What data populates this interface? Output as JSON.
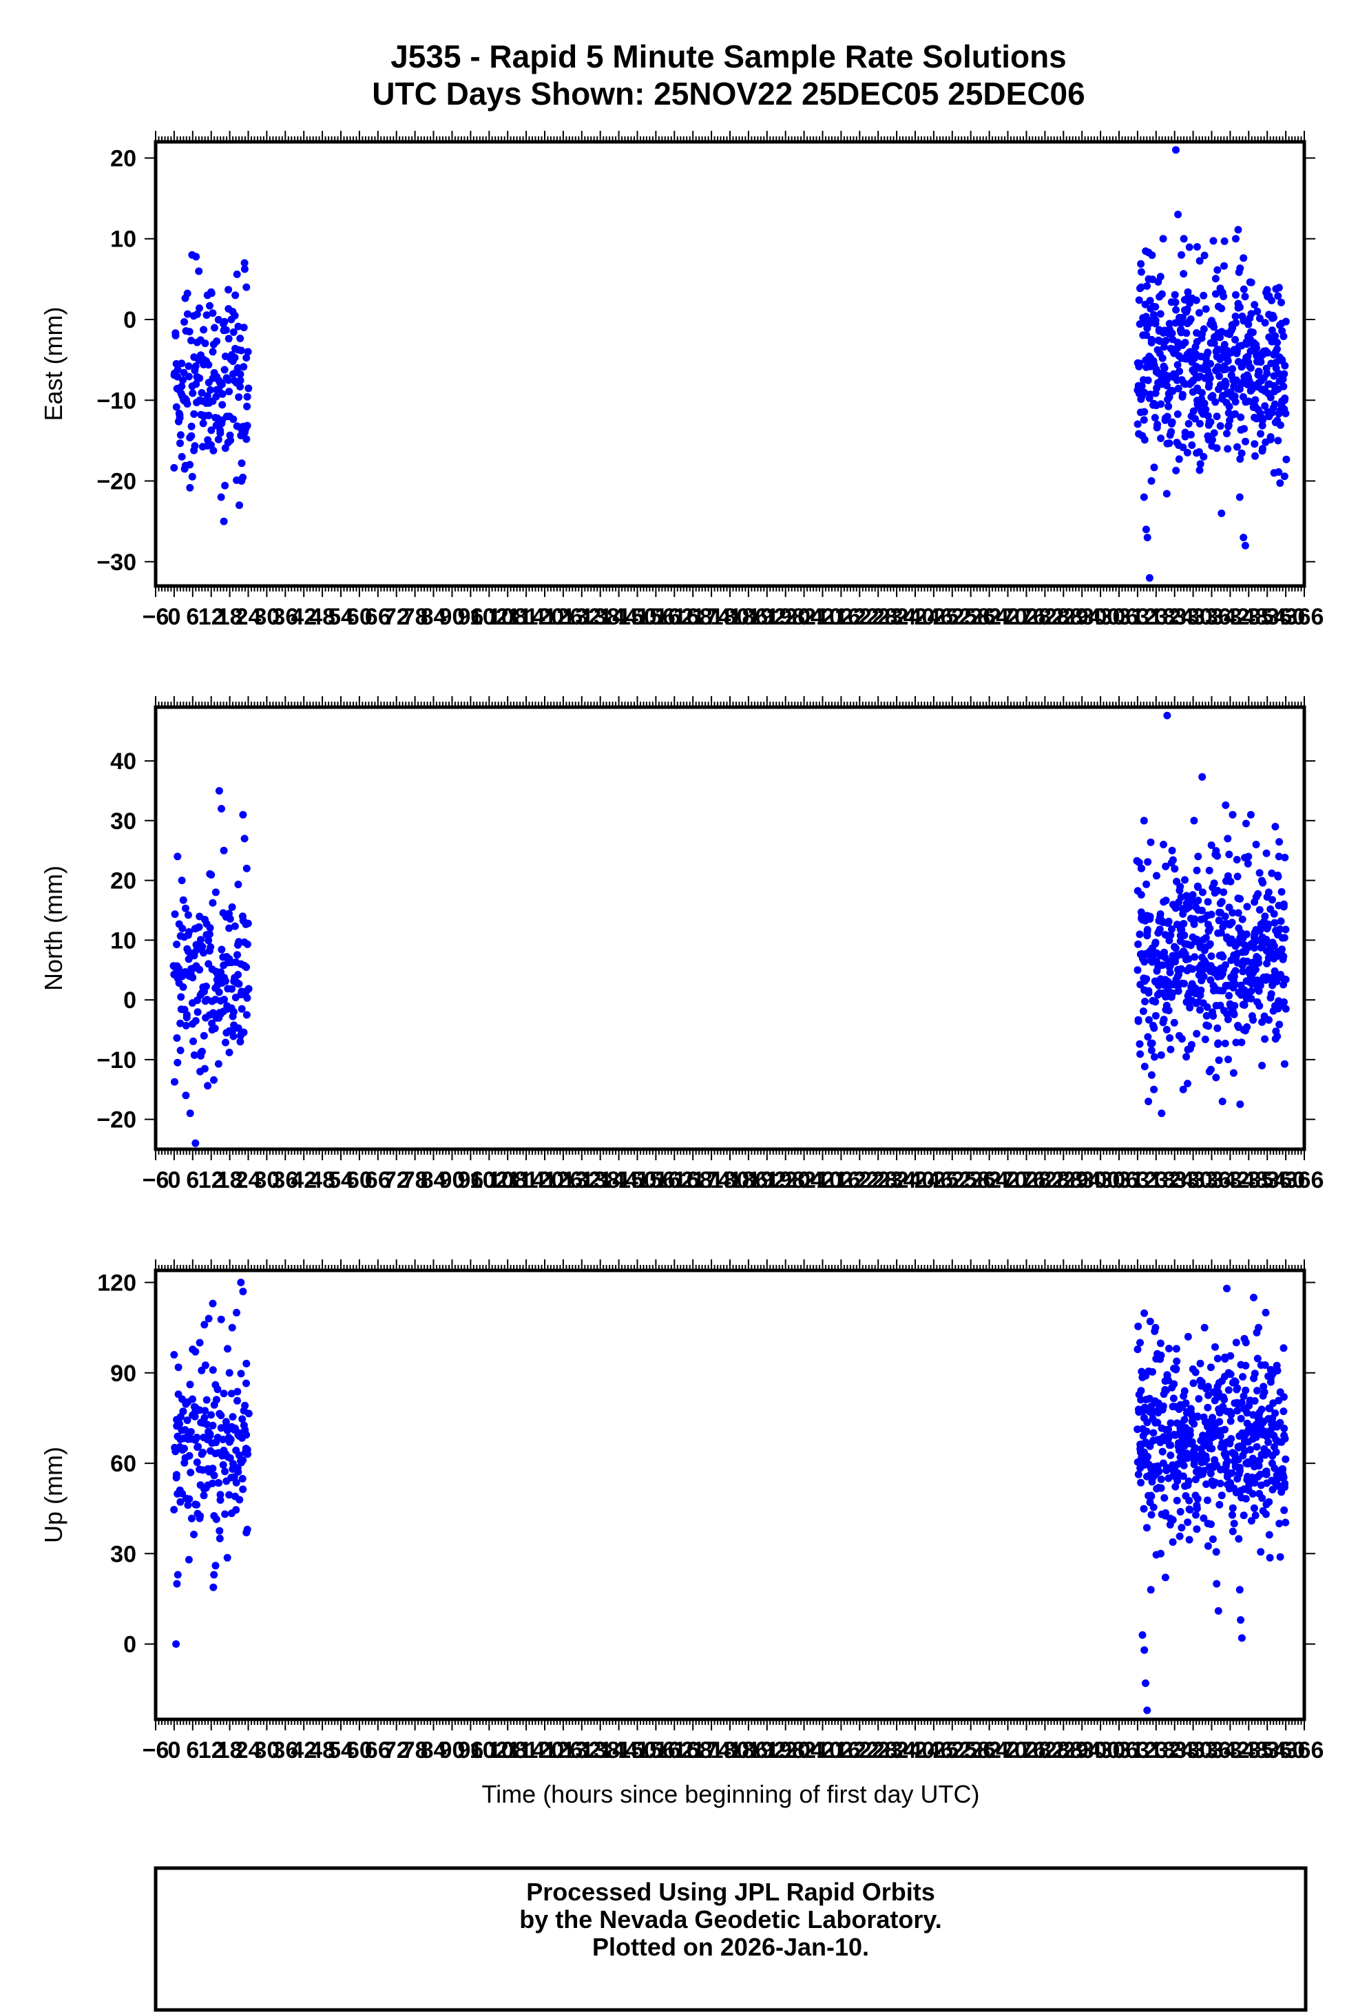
{
  "title": {
    "line1": "J535 - Rapid 5 Minute Sample Rate Solutions",
    "line2": "UTC Days Shown:  25NOV22 25DEC05 25DEC06"
  },
  "footer": {
    "line1": "Processed Using JPL Rapid Orbits",
    "line2": "by the Nevada Geodetic Laboratory.",
    "line3": "Plotted on 2026-Jan-10."
  },
  "colors": {
    "points": "#0000ff",
    "axes": "#000000",
    "background": "#ffffff"
  },
  "chart_data": [
    {
      "type": "scatter",
      "panel": "east",
      "ylabel": "East (mm)",
      "xlabel": "",
      "xlim": [
        -6,
        366
      ],
      "ylim": [
        -33,
        22
      ],
      "yticks": [
        -30,
        -20,
        -10,
        0,
        10,
        20
      ],
      "xtick_labels": [
        "−6",
        "0",
        "6",
        "12",
        "18",
        "24",
        "30",
        "36",
        "42",
        "48",
        "54",
        "60",
        "66",
        "72",
        "78",
        "84",
        "90",
        "96",
        "102",
        "108",
        "114",
        "120",
        "126",
        "132",
        "138",
        "144",
        "150",
        "156",
        "162",
        "168",
        "174",
        "180",
        "186",
        "192",
        "198",
        "204",
        "210",
        "216",
        "222",
        "228",
        "234",
        "240",
        "246",
        "252",
        "258",
        "264",
        "270",
        "276",
        "282",
        "288",
        "294",
        "300",
        "306",
        "312",
        "318",
        "324",
        "330",
        "336",
        "342",
        "348",
        "354",
        "360",
        "366"
      ],
      "series": [
        {
          "segment": "25NOV22",
          "x_range": [
            0,
            24
          ],
          "count": 180,
          "y_mean": -8,
          "y_sd": 6,
          "y_min": -25,
          "y_max": 8,
          "points": [
            [
              2.5,
              -17
            ],
            [
              3.4,
              -18.5
            ],
            [
              5.8,
              8
            ],
            [
              7.1,
              -8
            ],
            [
              8.3,
              -10
            ],
            [
              9.6,
              -12
            ],
            [
              10.8,
              3
            ],
            [
              12.5,
              -4
            ],
            [
              15.2,
              -22
            ],
            [
              16.1,
              -25
            ],
            [
              17.9,
              -12
            ],
            [
              19.8,
              3
            ],
            [
              20.6,
              -6
            ],
            [
              21.1,
              -23
            ],
            [
              21.8,
              -20
            ],
            [
              22.8,
              7
            ],
            [
              23.4,
              4
            ],
            [
              23.9,
              -4
            ]
          ]
        },
        {
          "segment": "25DEC05-25DEC06",
          "x_range": [
            312,
            360
          ],
          "count": 540,
          "y_mean": -6,
          "y_sd": 6,
          "y_min": -32,
          "y_max": 21,
          "points": [
            [
              313.2,
              4
            ],
            [
              314.1,
              -22
            ],
            [
              314.8,
              -26
            ],
            [
              315.2,
              -27
            ],
            [
              315.9,
              -32
            ],
            [
              316.5,
              -20
            ],
            [
              318.4,
              -13
            ],
            [
              320.3,
              10
            ],
            [
              322.6,
              -9
            ],
            [
              324.4,
              21
            ],
            [
              325.1,
              13
            ],
            [
              326.2,
              8
            ],
            [
              327.4,
              -8
            ],
            [
              329.1,
              -4
            ],
            [
              331.3,
              9
            ],
            [
              333.4,
              -17
            ],
            [
              335.2,
              -8
            ],
            [
              337.7,
              -12
            ],
            [
              339.2,
              -24
            ],
            [
              341.5,
              -4
            ],
            [
              343.8,
              10
            ],
            [
              345.1,
              -22
            ],
            [
              346.3,
              -27
            ],
            [
              346.9,
              -28
            ],
            [
              348.7,
              -6
            ],
            [
              350.8,
              1
            ],
            [
              352.5,
              -16
            ],
            [
              354.6,
              -12
            ],
            [
              356.2,
              -19
            ],
            [
              357.5,
              -15
            ],
            [
              358.8,
              -5
            ],
            [
              359.6,
              -10
            ]
          ]
        }
      ]
    },
    {
      "type": "scatter",
      "panel": "north",
      "ylabel": "North (mm)",
      "xlabel": "",
      "xlim": [
        -6,
        366
      ],
      "ylim": [
        -25,
        49
      ],
      "yticks": [
        -20,
        -10,
        0,
        10,
        20,
        30,
        40
      ],
      "xtick_labels": [
        "−6",
        "0",
        "6",
        "12",
        "18",
        "24",
        "30",
        "36",
        "42",
        "48",
        "54",
        "60",
        "66",
        "72",
        "78",
        "84",
        "90",
        "96",
        "102",
        "108",
        "114",
        "120",
        "126",
        "132",
        "138",
        "144",
        "150",
        "156",
        "162",
        "168",
        "174",
        "180",
        "186",
        "192",
        "198",
        "204",
        "210",
        "216",
        "222",
        "228",
        "234",
        "240",
        "246",
        "252",
        "258",
        "264",
        "270",
        "276",
        "282",
        "288",
        "294",
        "300",
        "306",
        "312",
        "318",
        "324",
        "330",
        "336",
        "342",
        "348",
        "354",
        "360",
        "366"
      ],
      "series": [
        {
          "segment": "25NOV22",
          "x_range": [
            0,
            24
          ],
          "count": 180,
          "y_mean": 5,
          "y_sd": 7,
          "y_min": -24,
          "y_max": 35,
          "points": [
            [
              1.1,
              24
            ],
            [
              2.5,
              20
            ],
            [
              3.8,
              -16
            ],
            [
              5.2,
              -19
            ],
            [
              6.9,
              -24
            ],
            [
              8.4,
              -12
            ],
            [
              10.2,
              -3
            ],
            [
              12.3,
              -5
            ],
            [
              13.5,
              18
            ],
            [
              14.6,
              35
            ],
            [
              15.3,
              32
            ],
            [
              16.1,
              25
            ],
            [
              17.8,
              12
            ],
            [
              19.3,
              -2
            ],
            [
              21.4,
              -7
            ],
            [
              22.3,
              31
            ],
            [
              22.8,
              27
            ],
            [
              23.5,
              22
            ]
          ]
        },
        {
          "segment": "25DEC05-25DEC06",
          "x_range": [
            312,
            360
          ],
          "count": 540,
          "y_mean": 7,
          "y_sd": 8,
          "y_min": -19,
          "y_max": 48,
          "points": [
            [
              313.2,
              22
            ],
            [
              314.1,
              30
            ],
            [
              315.5,
              -17
            ],
            [
              317.3,
              -15
            ],
            [
              319.8,
              -19
            ],
            [
              320.4,
              26
            ],
            [
              321.6,
              47.6
            ],
            [
              323.2,
              25
            ],
            [
              325.5,
              -6
            ],
            [
              326.8,
              -15
            ],
            [
              328.2,
              -14
            ],
            [
              330.3,
              30
            ],
            [
              331.6,
              24
            ],
            [
              333.1,
              18
            ],
            [
              335.3,
              -12
            ],
            [
              337.4,
              -13
            ],
            [
              339.5,
              -17
            ],
            [
              341.2,
              27
            ],
            [
              342.8,
              31
            ],
            [
              344.6,
              17
            ],
            [
              346.4,
              -5
            ],
            [
              348.7,
              31
            ],
            [
              350.4,
              26
            ],
            [
              352.3,
              -11
            ],
            [
              354.5,
              18
            ],
            [
              356.6,
              29
            ],
            [
              357.8,
              24
            ],
            [
              359.4,
              16
            ]
          ]
        }
      ]
    },
    {
      "type": "scatter",
      "panel": "up",
      "ylabel": "Up (mm)",
      "xlabel": "Time (hours since beginning of first day UTC)",
      "xlim": [
        -6,
        366
      ],
      "ylim": [
        -25,
        124
      ],
      "yticks": [
        0,
        30,
        60,
        90,
        120
      ],
      "xtick_labels": [
        "−6",
        "0",
        "6",
        "12",
        "18",
        "24",
        "30",
        "36",
        "42",
        "48",
        "54",
        "60",
        "66",
        "72",
        "78",
        "84",
        "90",
        "96",
        "102",
        "108",
        "114",
        "120",
        "126",
        "132",
        "138",
        "144",
        "150",
        "156",
        "162",
        "168",
        "174",
        "180",
        "186",
        "192",
        "198",
        "204",
        "210",
        "216",
        "222",
        "228",
        "234",
        "240",
        "246",
        "252",
        "258",
        "264",
        "270",
        "276",
        "282",
        "288",
        "294",
        "300",
        "306",
        "312",
        "318",
        "324",
        "330",
        "336",
        "342",
        "348",
        "354",
        "360",
        "366"
      ],
      "series": [
        {
          "segment": "25NOV22",
          "x_range": [
            0,
            24
          ],
          "count": 180,
          "y_mean": 65,
          "y_sd": 15,
          "y_min": 0,
          "y_max": 120,
          "points": [
            [
              0.6,
              0
            ],
            [
              0.9,
              20
            ],
            [
              1.2,
              23
            ],
            [
              4.8,
              28
            ],
            [
              6.9,
              97
            ],
            [
              8.3,
              100
            ],
            [
              9.8,
              106
            ],
            [
              11.2,
              108
            ],
            [
              12.5,
              113
            ],
            [
              12.9,
              23
            ],
            [
              13.4,
              26
            ],
            [
              14.8,
              35
            ],
            [
              17.3,
              98
            ],
            [
              17.9,
              90
            ],
            [
              18.8,
              105
            ],
            [
              20.2,
              110
            ],
            [
              21.6,
              120
            ],
            [
              22.3,
              117
            ],
            [
              23.4,
              37
            ],
            [
              23.7,
              38
            ]
          ]
        },
        {
          "segment": "25DEC05-25DEC06",
          "x_range": [
            312,
            360
          ],
          "count": 540,
          "y_mean": 67,
          "y_sd": 15,
          "y_min": -22,
          "y_max": 118,
          "points": [
            [
              312.8,
              100
            ],
            [
              313.6,
              3
            ],
            [
              314.2,
              -2
            ],
            [
              314.6,
              -13
            ],
            [
              315.1,
              -22
            ],
            [
              316.3,
              18
            ],
            [
              317.8,
              105
            ],
            [
              319.5,
              30
            ],
            [
              324.6,
              98
            ],
            [
              328.4,
              102
            ],
            [
              331.3,
              45
            ],
            [
              333.7,
              105
            ],
            [
              334.8,
              40
            ],
            [
              337.6,
              20
            ],
            [
              338.2,
              11
            ],
            [
              340.9,
              118
            ],
            [
              343.3,
              40
            ],
            [
              345.1,
              18
            ],
            [
              345.4,
              8
            ],
            [
              345.8,
              2
            ],
            [
              347.2,
              60
            ],
            [
              349.6,
              115
            ],
            [
              351.2,
              105
            ],
            [
              353.5,
              110
            ],
            [
              355.6,
              60
            ],
            [
              357.9,
              40
            ],
            [
              359.4,
              82
            ]
          ]
        }
      ]
    }
  ]
}
